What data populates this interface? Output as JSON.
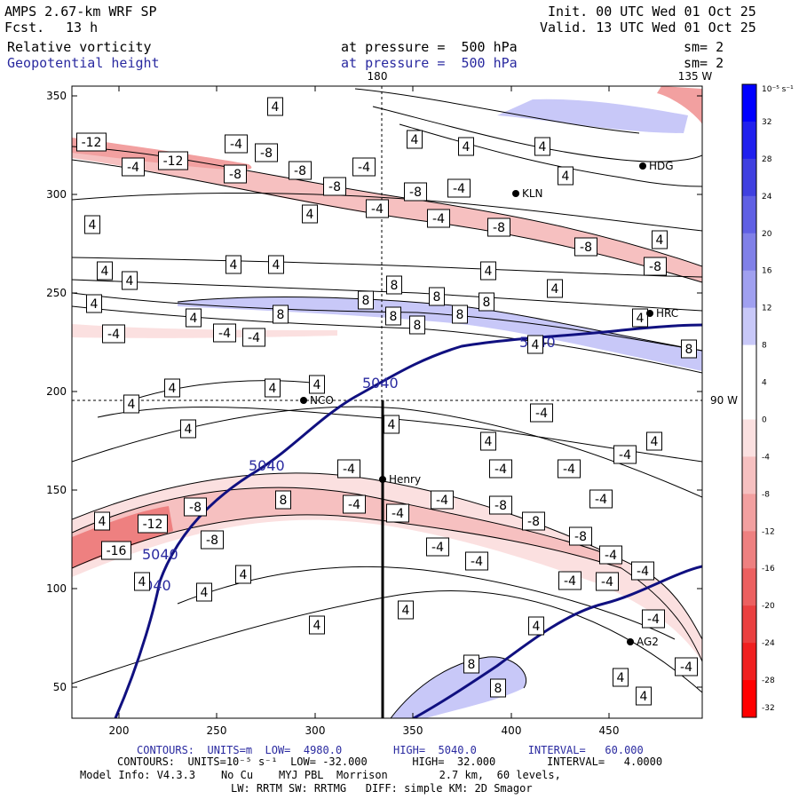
{
  "header": {
    "model": "AMPS 2.67-km WRF SP",
    "forecast_label": "Fcst.",
    "forecast_hours": "13 h",
    "init": "Init. 00 UTC Wed 01 Oct 25",
    "valid": "Valid. 13 UTC Wed 01 Oct 25",
    "field1": {
      "name": "Relative vorticity",
      "level": "at pressure =  500 hPa",
      "smooth": "sm= 2"
    },
    "field2": {
      "name": "Geopotential height",
      "level": "at pressure =  500 hPa",
      "smooth": "sm= 2"
    },
    "top_lon_180": "180",
    "top_lon_135": "135 W",
    "right_lon_90": "90 W"
  },
  "axes": {
    "x_ticks": [
      "200",
      "250",
      "300",
      "350",
      "400",
      "450"
    ],
    "y_ticks": [
      "50",
      "100",
      "150",
      "200",
      "250",
      "300",
      "350"
    ]
  },
  "stations": [
    {
      "name": "KLN"
    },
    {
      "name": "HDG"
    },
    {
      "name": "HRC"
    },
    {
      "name": "NCO"
    },
    {
      "name": "Henry"
    },
    {
      "name": "AG2"
    }
  ],
  "colorbar": {
    "unit": "10⁻⁵ s⁻¹",
    "labels": [
      "32",
      "28",
      "24",
      "20",
      "16",
      "12",
      "8",
      "4",
      "0",
      "-4",
      "-8",
      "-12",
      "-16",
      "-20",
      "-24",
      "-28",
      "-32"
    ],
    "colors": [
      "#0000ff",
      "#2020ee",
      "#4040e0",
      "#6060e4",
      "#8080e8",
      "#a0a0f0",
      "#c8c8f8",
      "#ffffff",
      "#ffffff",
      "#fbe0e0",
      "#f6c0c0",
      "#f2a0a0",
      "#ee8080",
      "#ec6060",
      "#ea4040",
      "#f02020",
      "#ff0000"
    ]
  },
  "contour_labels": {
    "height_5040": "5040",
    "vorticity": [
      "4",
      "-4",
      "8",
      "-8",
      "-12",
      "-16"
    ]
  },
  "footer": {
    "line1": "CONTOURS:  UNITS=m  LOW=  4980.0        HIGH=  5040.0        INTERVAL=   60.000",
    "line2": "CONTOURS:  UNITS=10⁻⁵ s⁻¹  LOW= -32.000       HIGH=  32.000        INTERVAL=   4.0000",
    "line3": "Model Info: V4.3.3    No Cu    MYJ PBL  Morrison        2.7 km,  60 levels,",
    "line4": "LW: RRTM SW: RRTMG   DIFF: simple KM: 2D Smagor"
  }
}
